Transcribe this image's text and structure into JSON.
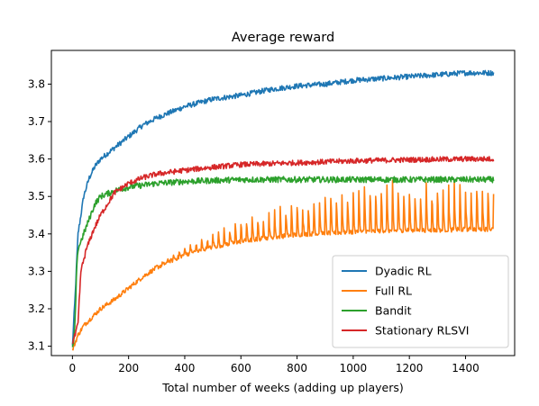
{
  "chart_data": {
    "type": "line",
    "title": "Average reward",
    "xlabel": "Total number of weeks (adding up players)",
    "ylabel": "",
    "xlim": [
      -75,
      1575
    ],
    "ylim": [
      3.075,
      3.89
    ],
    "xticks": [
      0,
      200,
      400,
      600,
      800,
      1000,
      1200,
      1400
    ],
    "yticks": [
      3.1,
      3.2,
      3.3,
      3.4,
      3.5,
      3.6,
      3.7,
      3.8
    ],
    "grid": false,
    "legend_position": "lower-right",
    "series": [
      {
        "name": "Dyadic RL",
        "color": "#1f77b4",
        "x": [
          0,
          10,
          20,
          40,
          60,
          80,
          100,
          150,
          200,
          250,
          300,
          400,
          500,
          600,
          700,
          800,
          900,
          1000,
          1100,
          1200,
          1300,
          1400,
          1500
        ],
        "y": [
          3.1,
          3.24,
          3.4,
          3.5,
          3.55,
          3.58,
          3.6,
          3.63,
          3.66,
          3.69,
          3.71,
          3.74,
          3.76,
          3.77,
          3.785,
          3.795,
          3.8,
          3.81,
          3.815,
          3.82,
          3.825,
          3.83,
          3.83
        ],
        "noise": 0.007
      },
      {
        "name": "Full RL",
        "color": "#ff7f0e",
        "x": [
          0,
          10,
          20,
          40,
          60,
          80,
          100,
          150,
          200,
          250,
          300,
          400,
          500,
          600,
          700,
          800,
          900,
          1000,
          1100,
          1200,
          1300,
          1400,
          1500
        ],
        "y": [
          3.09,
          3.11,
          3.13,
          3.155,
          3.17,
          3.185,
          3.2,
          3.225,
          3.255,
          3.285,
          3.31,
          3.345,
          3.365,
          3.38,
          3.39,
          3.398,
          3.402,
          3.405,
          3.408,
          3.41,
          3.41,
          3.412,
          3.413
        ],
        "noise": 0.006,
        "spike_period": 20,
        "spike_start": 300,
        "spike_max": 0.13
      },
      {
        "name": "Bandit",
        "color": "#2ca02c",
        "x": [
          0,
          5,
          10,
          15,
          20,
          40,
          60,
          80,
          100,
          150,
          200,
          300,
          400,
          600,
          800,
          1000,
          1200,
          1400,
          1500
        ],
        "y": [
          3.095,
          3.11,
          3.18,
          3.3,
          3.36,
          3.4,
          3.44,
          3.48,
          3.5,
          3.515,
          3.525,
          3.535,
          3.54,
          3.545,
          3.545,
          3.545,
          3.545,
          3.545,
          3.545
        ],
        "noise": 0.008
      },
      {
        "name": "Stationary RLSVI",
        "color": "#d62728",
        "x": [
          0,
          10,
          20,
          30,
          50,
          75,
          100,
          125,
          150,
          200,
          250,
          300,
          400,
          500,
          600,
          800,
          1000,
          1200,
          1400,
          1500
        ],
        "y": [
          3.11,
          3.13,
          3.16,
          3.3,
          3.36,
          3.41,
          3.45,
          3.48,
          3.51,
          3.535,
          3.55,
          3.56,
          3.57,
          3.578,
          3.585,
          3.59,
          3.595,
          3.598,
          3.6,
          3.6
        ],
        "noise": 0.007
      }
    ]
  }
}
